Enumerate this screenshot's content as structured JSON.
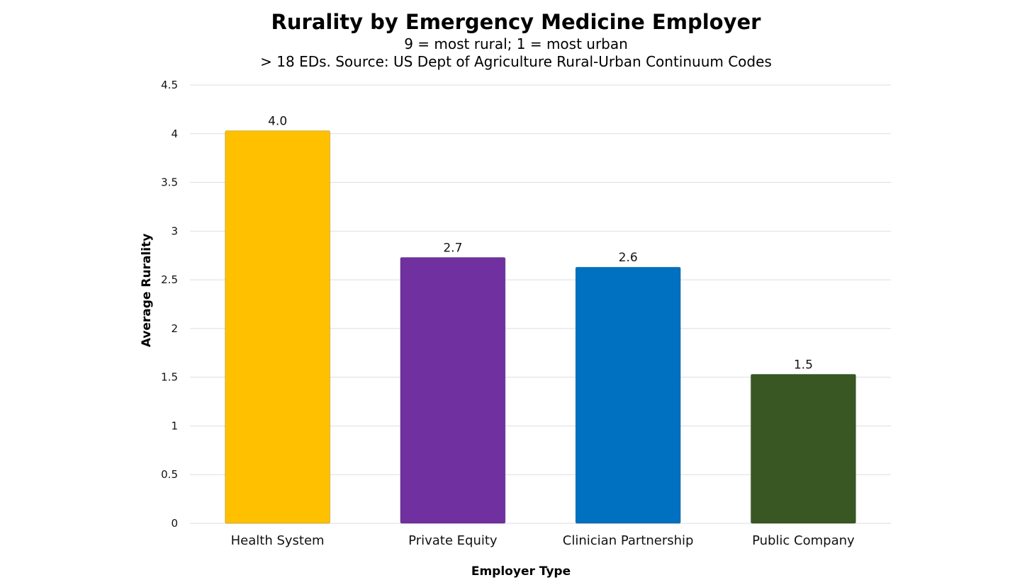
{
  "chart_data": {
    "type": "bar",
    "title": "Rurality by Emergency Medicine Employer",
    "subtitle_lines": [
      "9 = most rural; 1 = most urban",
      "> 18 EDs. Source: US Dept of Agriculture Rural-Urban Continuum Codes"
    ],
    "xlabel": "Employer Type",
    "ylabel": "Average Rurality",
    "categories": [
      "Health System",
      "Private Equity",
      "Clinician Partnership",
      "Public Company"
    ],
    "values": [
      4.03,
      2.73,
      2.63,
      1.53
    ],
    "data_labels": [
      "4.0",
      "2.7",
      "2.6",
      "1.5"
    ],
    "colors": [
      "#FFC000",
      "#7030A0",
      "#0070C0",
      "#385723"
    ],
    "ylim": [
      0,
      4.5
    ],
    "yticks": [
      0,
      0.5,
      1,
      1.5,
      2,
      2.5,
      3,
      3.5,
      4,
      4.5
    ],
    "ytick_labels": [
      "0",
      "0.5",
      "1",
      "1.5",
      "2",
      "2.5",
      "3",
      "3.5",
      "4",
      "4.5"
    ],
    "grid": true,
    "legend": "none"
  }
}
